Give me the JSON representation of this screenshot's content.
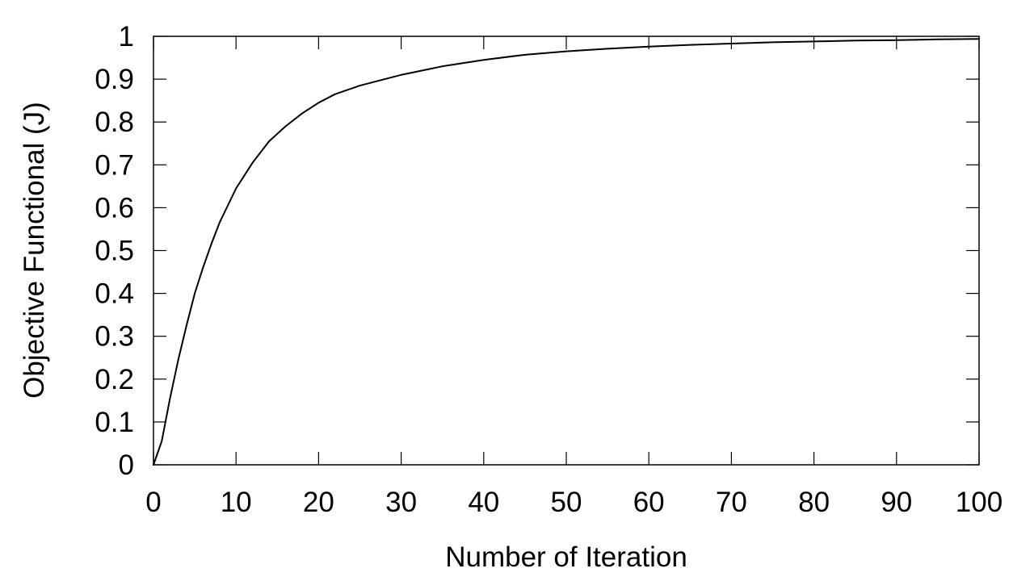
{
  "chart_data": {
    "type": "line",
    "title": "",
    "xlabel": "Number of Iteration",
    "ylabel": "Objective Functional (J)",
    "xlim": [
      0,
      100
    ],
    "ylim": [
      0,
      1
    ],
    "x_ticks": [
      0,
      10,
      20,
      30,
      40,
      50,
      60,
      70,
      80,
      90,
      100
    ],
    "y_ticks": [
      0,
      0.1,
      0.2,
      0.3,
      0.4,
      0.5,
      0.6,
      0.7,
      0.8,
      0.9,
      1
    ],
    "x_tick_labels": [
      "0",
      "10",
      "20",
      "30",
      "40",
      "50",
      "60",
      "70",
      "80",
      "90",
      "100"
    ],
    "y_tick_labels": [
      "0",
      "0.1",
      "0.2",
      "0.3",
      "0.4",
      "0.5",
      "0.6",
      "0.7",
      "0.8",
      "0.9",
      "1"
    ],
    "grid": false,
    "legend": "none",
    "series": [
      {
        "color": "#000000",
        "x": [
          0,
          1,
          2,
          3,
          4,
          5,
          6,
          7,
          8,
          9,
          10,
          12,
          14,
          16,
          18,
          20,
          22,
          25,
          30,
          35,
          40,
          45,
          50,
          55,
          60,
          65,
          70,
          75,
          80,
          85,
          90,
          95,
          100
        ],
        "y": [
          0,
          0.055,
          0.155,
          0.245,
          0.325,
          0.4,
          0.46,
          0.515,
          0.565,
          0.605,
          0.645,
          0.705,
          0.755,
          0.79,
          0.82,
          0.845,
          0.865,
          0.885,
          0.91,
          0.93,
          0.945,
          0.957,
          0.965,
          0.971,
          0.976,
          0.98,
          0.983,
          0.986,
          0.988,
          0.99,
          0.991,
          0.993,
          0.994
        ]
      }
    ]
  }
}
